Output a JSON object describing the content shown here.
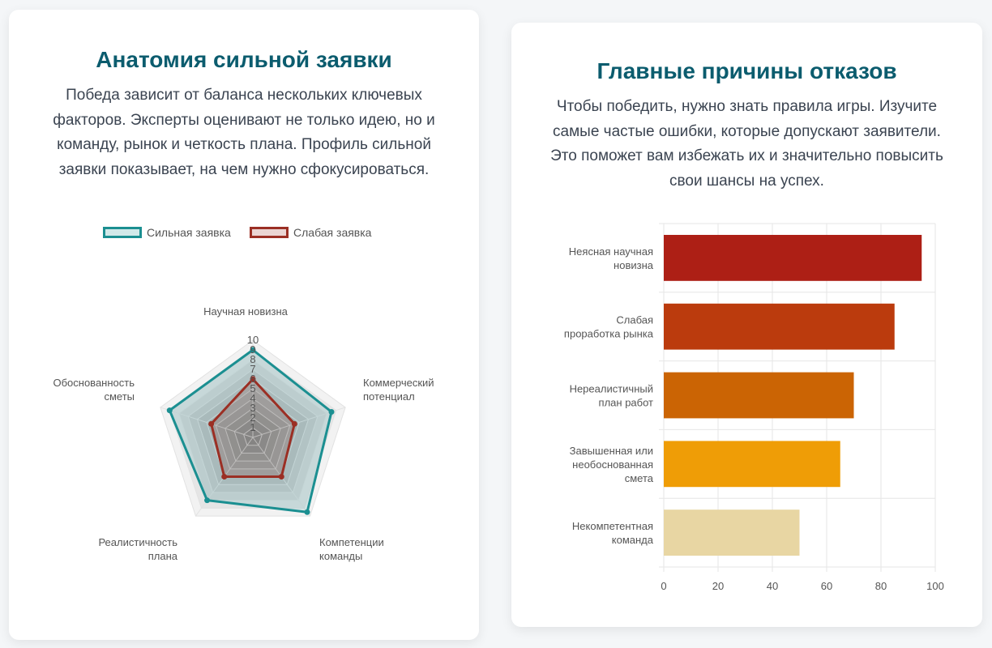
{
  "left_card": {
    "title": "Анатомия сильной заявки",
    "description": "Победа зависит от баланса нескольких ключевых факторов. Эксперты оценивают не только идею, но и команду, рынок и четкость плана. Профиль сильной заявки показывает, на чем нужно сфокусироваться."
  },
  "right_card": {
    "title": "Главные причины отказов",
    "description": "Чтобы победить, нужно знать правила игры. Изучите самые частые ошибки, которые допускают заявители. Это поможет вам избежать их и значительно повысить свои шансы на успех."
  },
  "colors": {
    "title": "#0b5c6e",
    "strong": "#1b8f91",
    "weak": "#9b2f24",
    "bars": [
      "#ad1f15",
      "#bb3b0d",
      "#cb6404",
      "#ef9d06",
      "#e8d6a3"
    ]
  },
  "chart_data": [
    {
      "type": "radar",
      "axes": [
        {
          "label": [
            "Научная новизна"
          ]
        },
        {
          "label": [
            "Коммерческий",
            "потенциал"
          ]
        },
        {
          "label": [
            "Компетенции",
            "команды"
          ]
        },
        {
          "label": [
            "Реалистичность",
            "плана"
          ]
        },
        {
          "label": [
            "Обоснованность",
            "сметы"
          ]
        }
      ],
      "rlim": [
        0,
        10
      ],
      "ticks": [
        "1",
        "2",
        "3",
        "4",
        "5",
        "6",
        "7",
        "8",
        "9",
        "10"
      ],
      "legend": "top",
      "series": [
        {
          "name": "Сильная заявка",
          "values": [
            9,
            8.5,
            9.5,
            8,
            9
          ]
        },
        {
          "name": "Слабая заявка",
          "values": [
            6,
            4.5,
            5,
            5,
            4.5
          ]
        }
      ]
    },
    {
      "type": "bar",
      "orientation": "horizontal",
      "categories": [
        [
          "Неясная научная",
          "новизна"
        ],
        [
          "Слабая",
          "проработка рынка"
        ],
        [
          "Нереалистичный",
          "план работ"
        ],
        [
          "Завышенная или",
          "необоснованная",
          "смета"
        ],
        [
          "Некомпетентная",
          "команда"
        ]
      ],
      "values": [
        95,
        85,
        70,
        65,
        50
      ],
      "xlim": [
        0,
        100
      ],
      "xticks": [
        "0",
        "20",
        "40",
        "60",
        "80",
        "100"
      ],
      "grid": true
    }
  ]
}
